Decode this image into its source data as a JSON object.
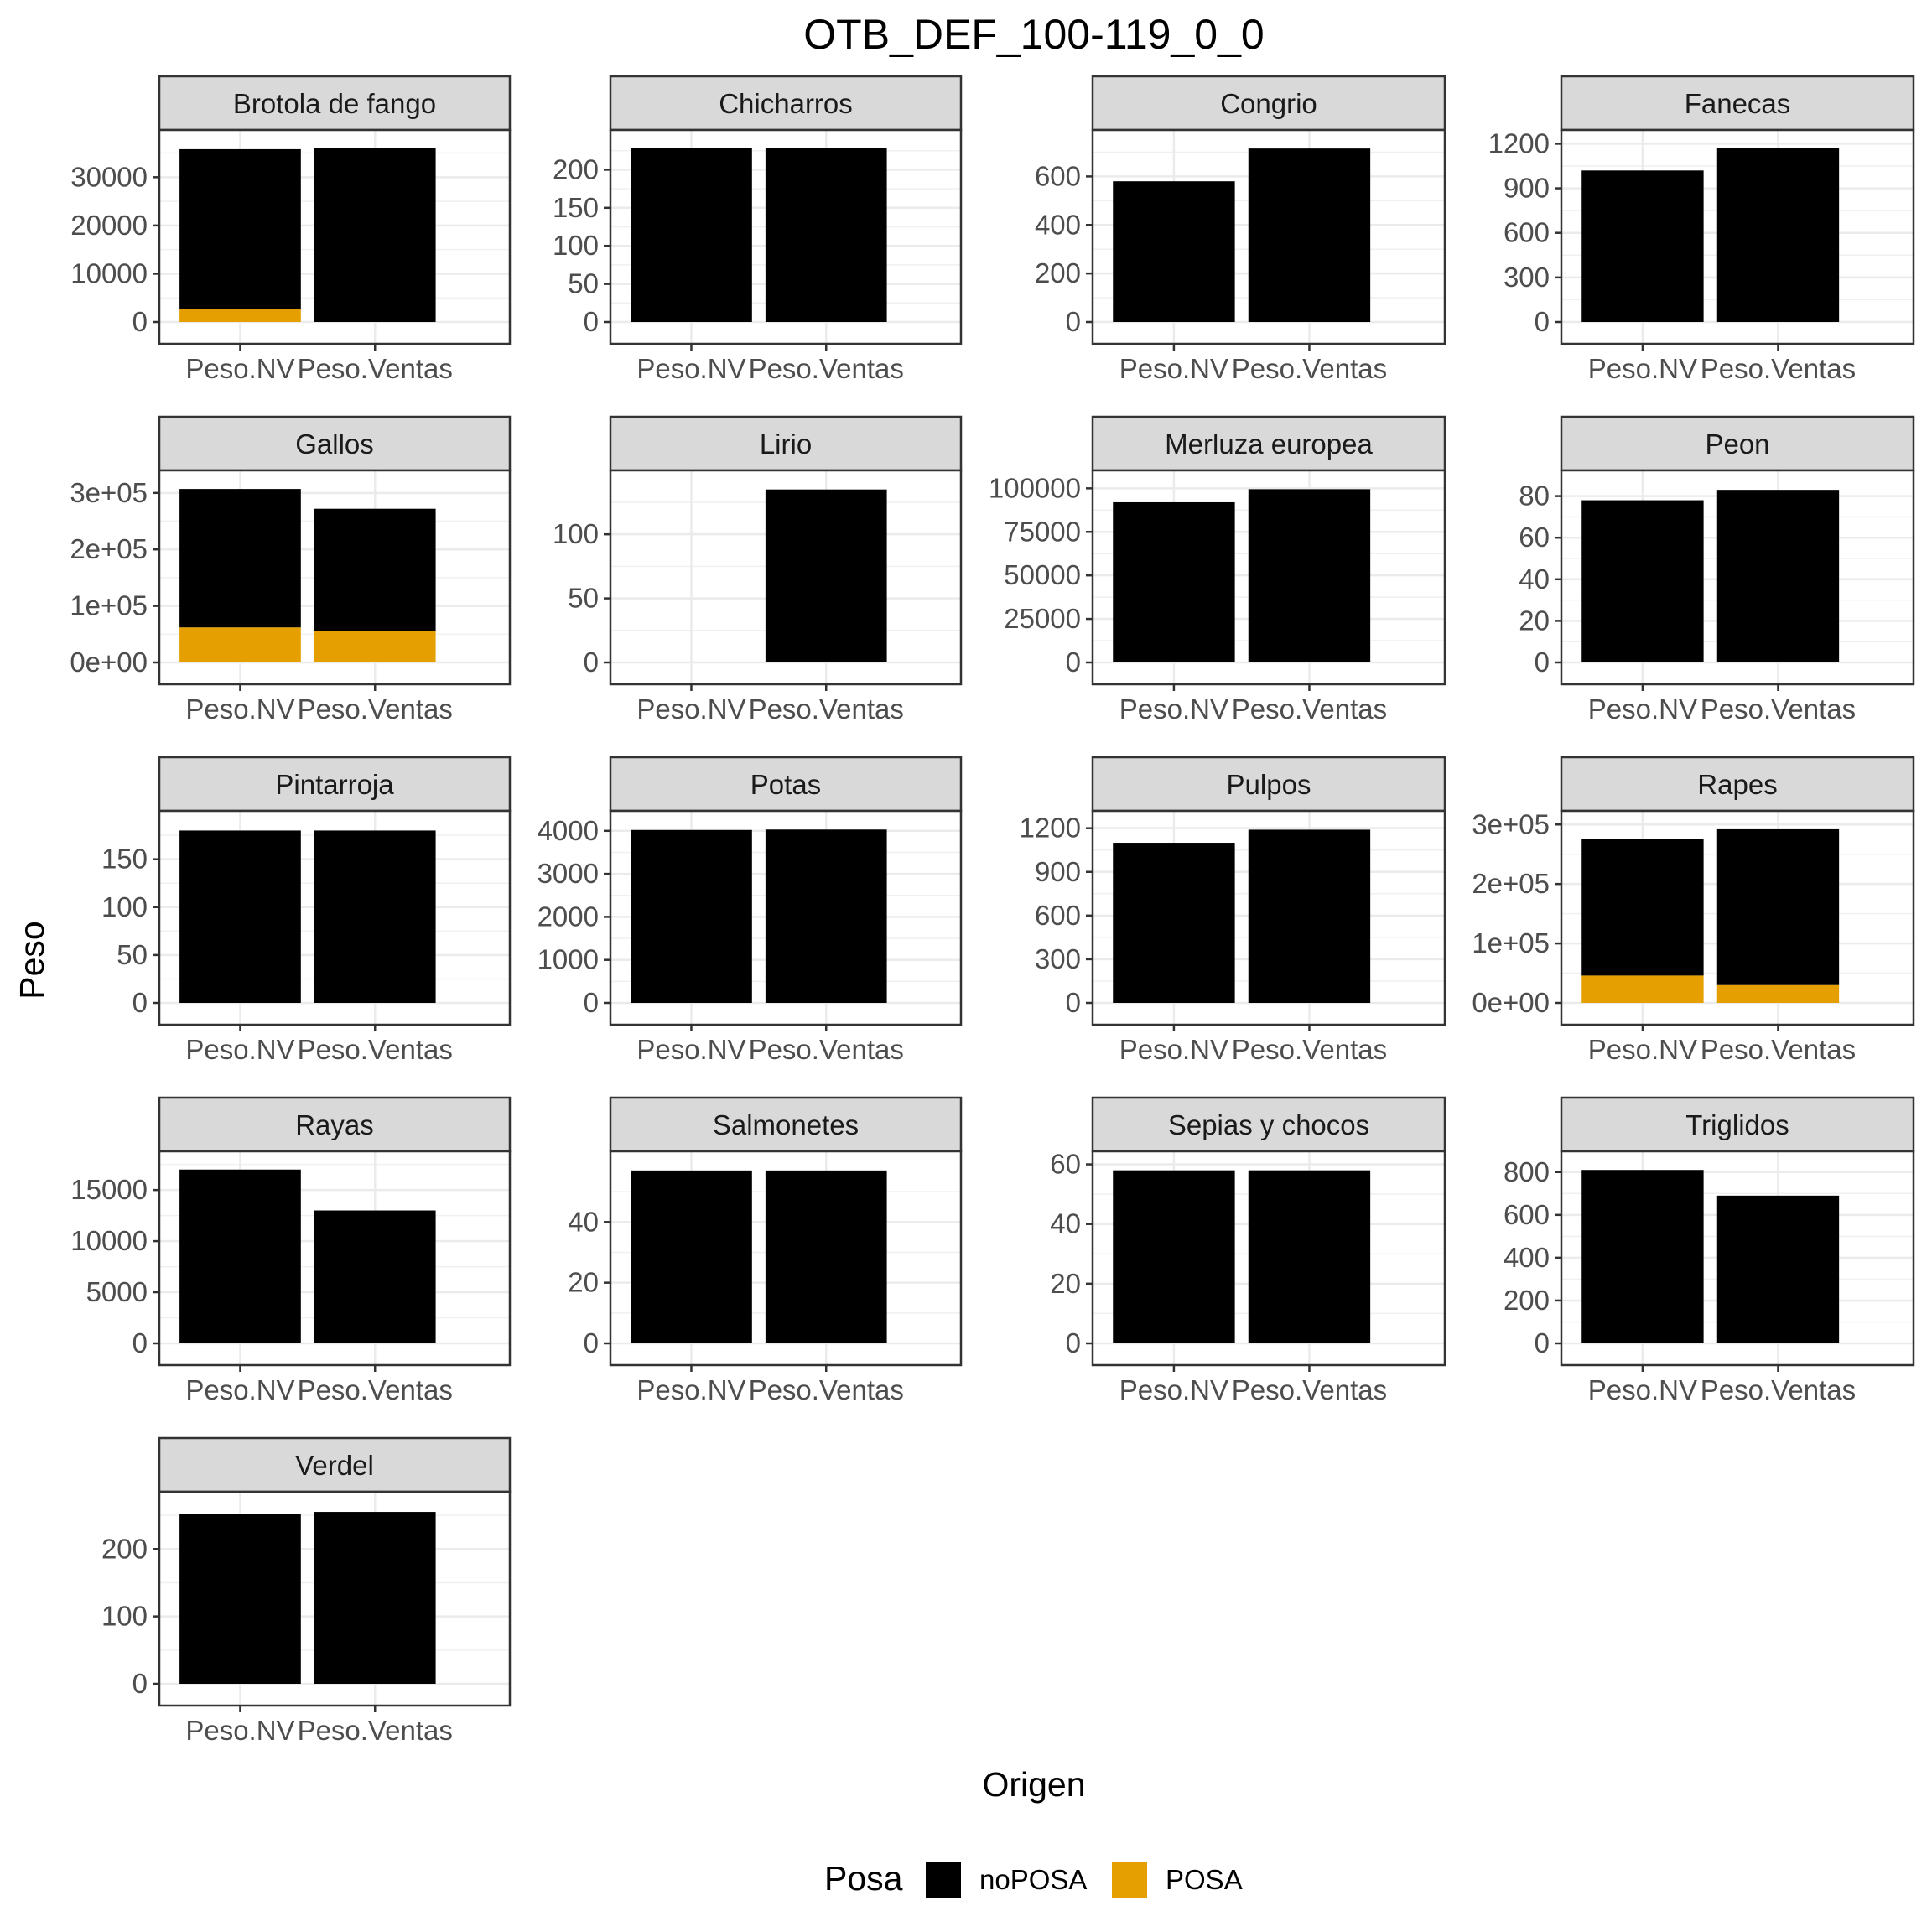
{
  "chart_data": {
    "type": "bar",
    "stacked": true,
    "title": "OTB_DEF_100-119_0_0",
    "xlabel": "Origen",
    "ylabel": "Peso",
    "categories": [
      "Peso.NV",
      "Peso.Ventas"
    ],
    "legend": {
      "title": "Posa",
      "position": "bottom",
      "entries": [
        {
          "name": "noPOSA",
          "color": "#000000"
        },
        {
          "name": "POSA",
          "color": "#E69F00"
        }
      ]
    },
    "grid": true,
    "facets": [
      {
        "name": "Brotola de fango",
        "ylim": [
          0,
          37700
        ],
        "yticks": [
          0,
          10000,
          20000,
          30000
        ],
        "ytick_labels": [
          "0",
          "10000",
          "20000",
          "30000"
        ],
        "series": [
          {
            "name": "noPOSA",
            "values": [
              33200,
              36000
            ]
          },
          {
            "name": "POSA",
            "values": [
              2600,
              0
            ]
          }
        ]
      },
      {
        "name": "Chicharros",
        "ylim": [
          0,
          239
        ],
        "yticks": [
          0,
          50,
          100,
          150,
          200
        ],
        "ytick_labels": [
          "0",
          "50",
          "100",
          "150",
          "200"
        ],
        "series": [
          {
            "name": "noPOSA",
            "values": [
              228,
              228
            ]
          },
          {
            "name": "POSA",
            "values": [
              0,
              0
            ]
          }
        ]
      },
      {
        "name": "Congrio",
        "ylim": [
          0,
          750
        ],
        "yticks": [
          0,
          200,
          400,
          600
        ],
        "ytick_labels": [
          "0",
          "200",
          "400",
          "600"
        ],
        "series": [
          {
            "name": "noPOSA",
            "values": [
              580,
              715
            ]
          },
          {
            "name": "POSA",
            "values": [
              0,
              0
            ]
          }
        ]
      },
      {
        "name": "Fanecas",
        "ylim": [
          0,
          1225
        ],
        "yticks": [
          0,
          300,
          600,
          900,
          1200
        ],
        "ytick_labels": [
          "0",
          "300",
          "600",
          "900",
          "1200"
        ],
        "series": [
          {
            "name": "noPOSA",
            "values": [
              1020,
              1170
            ]
          },
          {
            "name": "POSA",
            "values": [
              0,
              0
            ]
          }
        ]
      },
      {
        "name": "Gallos",
        "ylim": [
          0,
          322000
        ],
        "yticks": [
          0,
          100000,
          200000,
          300000
        ],
        "ytick_labels": [
          "0e+00",
          "1e+05",
          "2e+05",
          "3e+05"
        ],
        "series": [
          {
            "name": "noPOSA",
            "values": [
              245000,
              217000
            ]
          },
          {
            "name": "POSA",
            "values": [
              62000,
              55000
            ]
          }
        ]
      },
      {
        "name": "Lirio",
        "ylim": [
          0,
          142
        ],
        "yticks": [
          0,
          50,
          100
        ],
        "ytick_labels": [
          "0",
          "50",
          "100"
        ],
        "series": [
          {
            "name": "noPOSA",
            "values": [
              0,
              135
            ]
          },
          {
            "name": "POSA",
            "values": [
              0,
              0
            ]
          }
        ]
      },
      {
        "name": "Merluza europea",
        "ylim": [
          0,
          104500
        ],
        "yticks": [
          0,
          25000,
          50000,
          75000,
          100000
        ],
        "ytick_labels": [
          "0",
          "25000",
          "50000",
          "75000",
          "100000"
        ],
        "series": [
          {
            "name": "noPOSA",
            "values": [
              92000,
              99500
            ]
          },
          {
            "name": "POSA",
            "values": [
              0,
              0
            ]
          }
        ]
      },
      {
        "name": "Peon",
        "ylim": [
          0,
          87.5
        ],
        "yticks": [
          0,
          20,
          40,
          60,
          80
        ],
        "ytick_labels": [
          "0",
          "20",
          "40",
          "60",
          "80"
        ],
        "series": [
          {
            "name": "noPOSA",
            "values": [
              78,
              83
            ]
          },
          {
            "name": "POSA",
            "values": [
              0,
              0
            ]
          }
        ]
      },
      {
        "name": "Pintarroja",
        "ylim": [
          0,
          190
        ],
        "yticks": [
          0,
          50,
          100,
          150
        ],
        "ytick_labels": [
          "0",
          "50",
          "100",
          "150"
        ],
        "series": [
          {
            "name": "noPOSA",
            "values": [
              180,
              180
            ]
          },
          {
            "name": "POSA",
            "values": [
              0,
              0
            ]
          }
        ]
      },
      {
        "name": "Potas",
        "ylim": [
          0,
          4230
        ],
        "yticks": [
          0,
          1000,
          2000,
          3000,
          4000
        ],
        "ytick_labels": [
          "0",
          "1000",
          "2000",
          "3000",
          "4000"
        ],
        "series": [
          {
            "name": "noPOSA",
            "values": [
              4020,
              4030
            ]
          },
          {
            "name": "POSA",
            "values": [
              0,
              0
            ]
          }
        ]
      },
      {
        "name": "Pulpos",
        "ylim": [
          0,
          1250
        ],
        "yticks": [
          0,
          300,
          600,
          900,
          1200
        ],
        "ytick_labels": [
          "0",
          "300",
          "600",
          "900",
          "1200"
        ],
        "series": [
          {
            "name": "noPOSA",
            "values": [
              1100,
              1190
            ]
          },
          {
            "name": "POSA",
            "values": [
              0,
              0
            ]
          }
        ]
      },
      {
        "name": "Rapes",
        "ylim": [
          0,
          306000
        ],
        "yticks": [
          0,
          100000,
          200000,
          300000
        ],
        "ytick_labels": [
          "0e+00",
          "1e+05",
          "2e+05",
          "3e+05"
        ],
        "series": [
          {
            "name": "noPOSA",
            "values": [
              230000,
              262000
            ]
          },
          {
            "name": "POSA",
            "values": [
              46000,
              30000
            ]
          }
        ]
      },
      {
        "name": "Rayas",
        "ylim": [
          0,
          17800
        ],
        "yticks": [
          0,
          5000,
          10000,
          15000
        ],
        "ytick_labels": [
          "0",
          "5000",
          "10000",
          "15000"
        ],
        "series": [
          {
            "name": "noPOSA",
            "values": [
              17000,
              13000
            ]
          },
          {
            "name": "POSA",
            "values": [
              0,
              0
            ]
          }
        ]
      },
      {
        "name": "Salmonetes",
        "ylim": [
          0,
          60
        ],
        "yticks": [
          0,
          20,
          40
        ],
        "ytick_labels": [
          "0",
          "20",
          "40"
        ],
        "series": [
          {
            "name": "noPOSA",
            "values": [
              57,
              57
            ]
          },
          {
            "name": "POSA",
            "values": [
              0,
              0
            ]
          }
        ]
      },
      {
        "name": "Sepias y chocos",
        "ylim": [
          0,
          61
        ],
        "yticks": [
          0,
          20,
          40,
          60
        ],
        "ytick_labels": [
          "0",
          "20",
          "40",
          "60"
        ],
        "series": [
          {
            "name": "noPOSA",
            "values": [
              58,
              58
            ]
          },
          {
            "name": "POSA",
            "values": [
              0,
              0
            ]
          }
        ]
      },
      {
        "name": "Triglidos",
        "ylim": [
          0,
          850
        ],
        "yticks": [
          0,
          200,
          400,
          600,
          800
        ],
        "ytick_labels": [
          "0",
          "200",
          "400",
          "600",
          "800"
        ],
        "series": [
          {
            "name": "noPOSA",
            "values": [
              810,
              690
            ]
          },
          {
            "name": "POSA",
            "values": [
              0,
              0
            ]
          }
        ]
      },
      {
        "name": "Verdel",
        "ylim": [
          0,
          270
        ],
        "yticks": [
          0,
          100,
          200
        ],
        "ytick_labels": [
          "0",
          "100",
          "200"
        ],
        "series": [
          {
            "name": "noPOSA",
            "values": [
              252,
              255
            ]
          },
          {
            "name": "POSA",
            "values": [
              0,
              0
            ]
          }
        ]
      }
    ]
  }
}
